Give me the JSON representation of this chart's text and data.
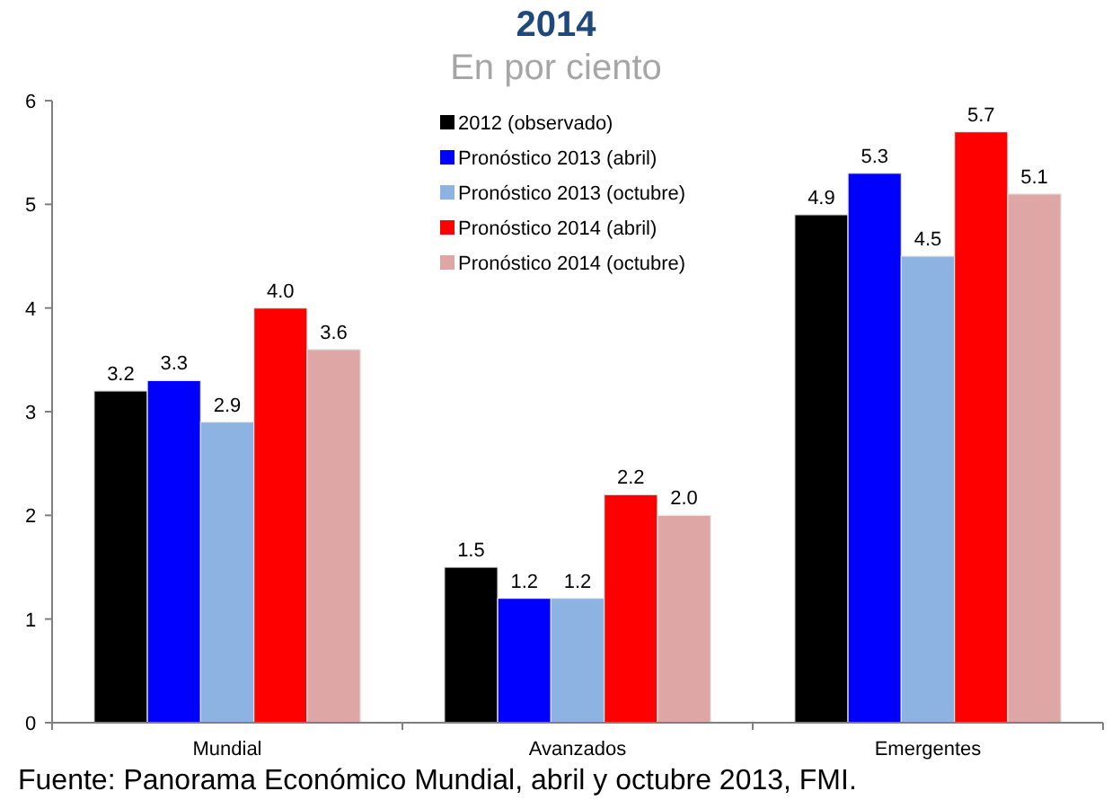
{
  "chart_data": {
    "type": "bar",
    "title": "2014",
    "subtitle": "En por ciento",
    "categories": [
      "Mundial",
      "Avanzados",
      "Emergentes"
    ],
    "series": [
      {
        "name": "2012 (observado)",
        "color": "#000000",
        "values": [
          3.2,
          1.5,
          4.9
        ],
        "value_labels": [
          "3.2",
          "1.5",
          "4.9"
        ]
      },
      {
        "name": "Pronóstico 2013 (abril)",
        "color": "#0000ff",
        "values": [
          3.3,
          1.2,
          5.3
        ],
        "value_labels": [
          "3.3",
          "1.2",
          "5.3"
        ]
      },
      {
        "name": "Pronóstico 2013 (octubre)",
        "color": "#8db3e2",
        "values": [
          2.9,
          1.2,
          4.5
        ],
        "value_labels": [
          "2.9",
          "1.2",
          "4.5"
        ]
      },
      {
        "name": "Pronóstico 2014 (abril)",
        "color": "#ff0000",
        "values": [
          4.0,
          2.2,
          5.7
        ],
        "value_labels": [
          "4.0",
          "2.2",
          "5.7"
        ]
      },
      {
        "name": "Pronóstico 2014 (octubre)",
        "color": "#dfa6a6",
        "values": [
          3.6,
          2.0,
          5.1
        ],
        "value_labels": [
          "3.6",
          "2.0",
          "5.1"
        ]
      }
    ],
    "ylim": [
      0,
      6
    ],
    "yticks": [
      0,
      1,
      2,
      3,
      4,
      5,
      6
    ],
    "legend": "top",
    "annotations": [
      "Fuente: Panorama Económico Mundial, abril y octubre 2013, FMI."
    ]
  }
}
